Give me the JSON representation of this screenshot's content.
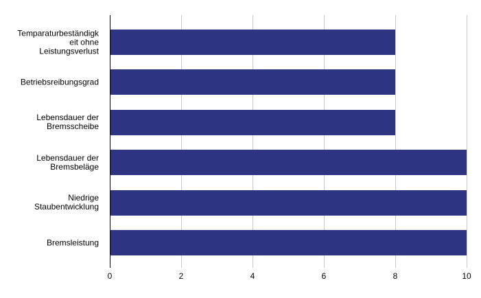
{
  "chart_data": {
    "type": "bar",
    "orientation": "horizontal",
    "title": "",
    "categories": [
      "Temparaturbeständigkeit ohne Leistungsverlust",
      "Betriebsreibungsgrad",
      "Lebensdauer der Bremsscheibe",
      "Lebensdauer der Bremsbeläge",
      "Niedrige Staubentwicklung",
      "Bremsleistung"
    ],
    "category_lines": [
      [
        "Temparaturbeständigk",
        "eit ohne",
        "Leistungsverlust"
      ],
      [
        "Betriebsreibungsgrad"
      ],
      [
        "Lebensdauer der",
        "Bremsscheibe"
      ],
      [
        "Lebensdauer der",
        "Bremsbeläge"
      ],
      [
        "Niedrige",
        "Staubentwicklung"
      ],
      [
        "Bremsleistung"
      ]
    ],
    "values": [
      8,
      8,
      8,
      10,
      10,
      10
    ],
    "xlabel": "",
    "ylabel": "",
    "xlim": [
      0,
      10
    ],
    "x_ticks": [
      0,
      2,
      4,
      6,
      8,
      10
    ],
    "grid": true,
    "legend_position": "none",
    "colors": {
      "bar": "#2d3583",
      "gridline": "#c8c8c8",
      "axis": "#000000",
      "background": "#ffffff",
      "text": "#000000"
    }
  }
}
